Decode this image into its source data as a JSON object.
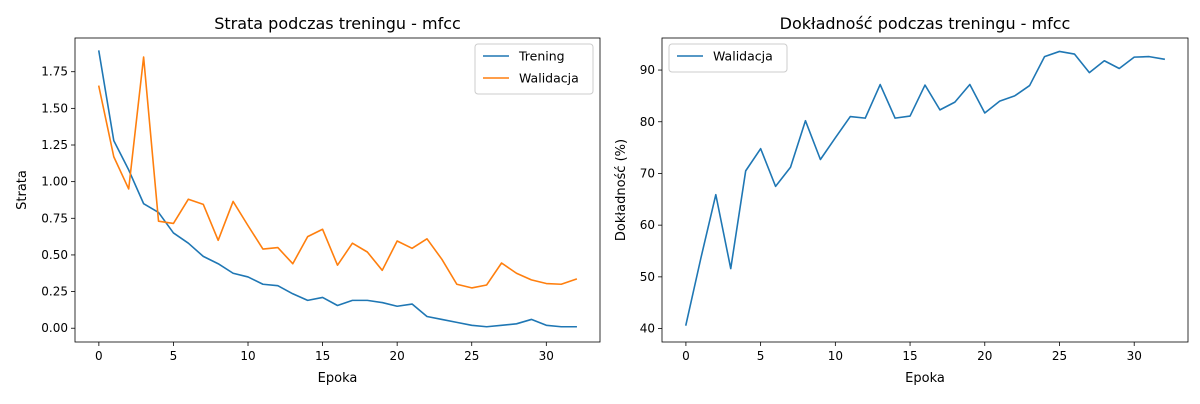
{
  "chart_data": [
    {
      "type": "line",
      "title": "Strata podczas treningu - mfcc",
      "xlabel": "Epoka",
      "ylabel": "Strata",
      "xlim": [
        -1.6,
        33.6
      ],
      "ylim": [
        -0.094,
        1.98
      ],
      "xticks": [
        0,
        5,
        10,
        15,
        20,
        25,
        30
      ],
      "yticks": [
        0.0,
        0.25,
        0.5,
        0.75,
        1.0,
        1.25,
        1.5,
        1.75
      ],
      "ytick_labels": [
        "0.00",
        "0.25",
        "0.50",
        "0.75",
        "1.00",
        "1.25",
        "1.50",
        "1.75"
      ],
      "legend": "top-right",
      "x": [
        0,
        1,
        2,
        3,
        4,
        5,
        6,
        7,
        8,
        9,
        10,
        11,
        12,
        13,
        14,
        15,
        16,
        17,
        18,
        19,
        20,
        21,
        22,
        23,
        24,
        25,
        26,
        27,
        28,
        29,
        30,
        31,
        32
      ],
      "series": [
        {
          "name": "Trening",
          "color": "#1f77b4",
          "values": [
            1.89,
            1.28,
            1.08,
            0.85,
            0.79,
            0.65,
            0.58,
            0.49,
            0.44,
            0.375,
            0.35,
            0.3,
            0.29,
            0.235,
            0.19,
            0.21,
            0.155,
            0.19,
            0.19,
            0.175,
            0.15,
            0.165,
            0.08,
            0.06,
            0.04,
            0.02,
            0.01,
            0.02,
            0.03,
            0.06,
            0.02,
            0.01,
            0.01
          ]
        },
        {
          "name": "Walidacja",
          "color": "#ff7f0e",
          "values": [
            1.65,
            1.17,
            0.95,
            1.85,
            0.73,
            0.715,
            0.88,
            0.845,
            0.6,
            0.865,
            0.7,
            0.54,
            0.55,
            0.44,
            0.625,
            0.675,
            0.43,
            0.58,
            0.52,
            0.395,
            0.595,
            0.545,
            0.61,
            0.47,
            0.3,
            0.275,
            0.295,
            0.445,
            0.375,
            0.33,
            0.305,
            0.3,
            0.335
          ]
        }
      ]
    },
    {
      "type": "line",
      "title": "Dokładność podczas treningu - mfcc",
      "xlabel": "Epoka",
      "ylabel": "Dokładność (%)",
      "xlim": [
        -1.6,
        33.6
      ],
      "ylim": [
        37.4,
        96.2
      ],
      "xticks": [
        0,
        5,
        10,
        15,
        20,
        25,
        30
      ],
      "yticks": [
        40,
        50,
        60,
        70,
        80,
        90
      ],
      "ytick_labels": [
        "40",
        "50",
        "60",
        "70",
        "80",
        "90"
      ],
      "legend": "top-left",
      "x": [
        0,
        1,
        2,
        3,
        4,
        5,
        6,
        7,
        8,
        9,
        10,
        11,
        12,
        13,
        14,
        15,
        16,
        17,
        18,
        19,
        20,
        21,
        22,
        23,
        24,
        25,
        26,
        27,
        28,
        29,
        30,
        31,
        32
      ],
      "series": [
        {
          "name": "Walidacja",
          "color": "#1f77b4",
          "values": [
            40.7,
            53.6,
            65.9,
            51.6,
            70.5,
            74.8,
            67.5,
            71.2,
            80.2,
            72.7,
            76.9,
            81.0,
            80.7,
            87.2,
            80.7,
            81.1,
            87.1,
            82.3,
            83.8,
            87.2,
            81.7,
            84.0,
            85.0,
            87.0,
            92.6,
            93.6,
            93.1,
            89.5,
            91.8,
            90.3,
            92.5,
            92.6,
            92.1
          ]
        }
      ]
    }
  ]
}
